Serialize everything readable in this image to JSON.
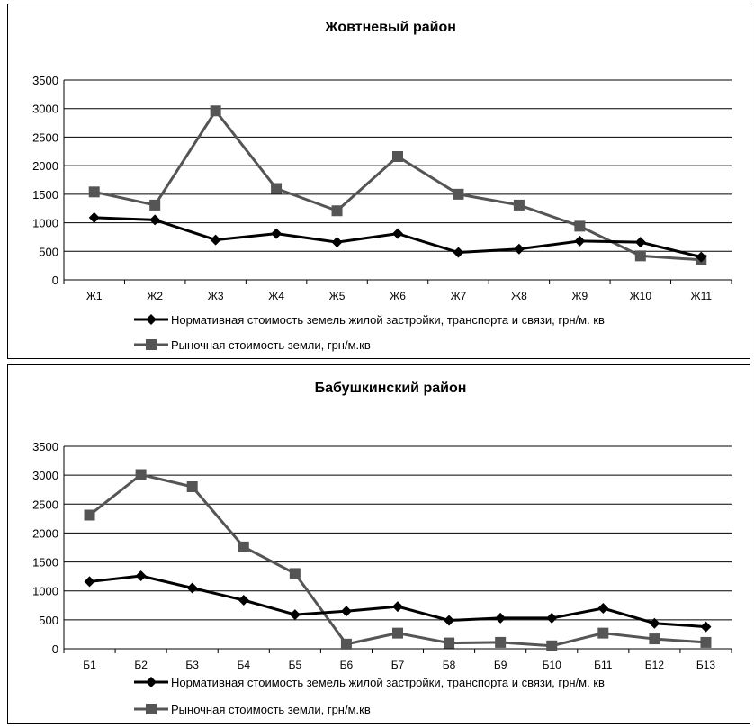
{
  "chart_data": [
    {
      "type": "line",
      "title": "Жовтневый район",
      "categories": [
        "Ж1",
        "Ж2",
        "Ж3",
        "Ж4",
        "Ж5",
        "Ж6",
        "Ж7",
        "Ж8",
        "Ж9",
        "Ж10",
        "Ж11"
      ],
      "ylim": [
        0,
        3500
      ],
      "yticks": [
        0,
        500,
        1000,
        1500,
        2000,
        2500,
        3000,
        3500
      ],
      "grid": true,
      "legend_position": "bottom",
      "series": [
        {
          "name": "Нормативная стоимость земель жилой застройки, транспорта и связи, грн/м. кв",
          "marker": "diamond",
          "color": "#000000",
          "values": [
            1090,
            1050,
            700,
            810,
            660,
            810,
            480,
            540,
            680,
            660,
            400
          ]
        },
        {
          "name": "Рыночная стоимость земли, грн/м.кв",
          "marker": "square",
          "color": "#555555",
          "values": [
            1540,
            1310,
            2960,
            1600,
            1210,
            2160,
            1500,
            1310,
            940,
            420,
            350
          ]
        }
      ]
    },
    {
      "type": "line",
      "title": "Бабушкинский район",
      "categories": [
        "Б1",
        "Б2",
        "Б3",
        "Б4",
        "Б5",
        "Б6",
        "Б7",
        "Б8",
        "Б9",
        "Б10",
        "Б11",
        "Б12",
        "Б13"
      ],
      "ylim": [
        0,
        3500
      ],
      "yticks": [
        0,
        500,
        1000,
        1500,
        2000,
        2500,
        3000,
        3500
      ],
      "grid": true,
      "legend_position": "bottom",
      "series": [
        {
          "name": "Нормативная стоимость земель жилой застройки, транспорта и связи, грн/м. кв",
          "marker": "diamond",
          "color": "#000000",
          "values": [
            1160,
            1260,
            1050,
            840,
            590,
            650,
            730,
            490,
            530,
            530,
            700,
            440,
            380
          ]
        },
        {
          "name": "Рыночная стоимость земли, грн/м.кв",
          "marker": "square",
          "color": "#555555",
          "values": [
            2310,
            3010,
            2800,
            1760,
            1300,
            80,
            270,
            100,
            110,
            50,
            270,
            170,
            110
          ]
        }
      ]
    }
  ]
}
